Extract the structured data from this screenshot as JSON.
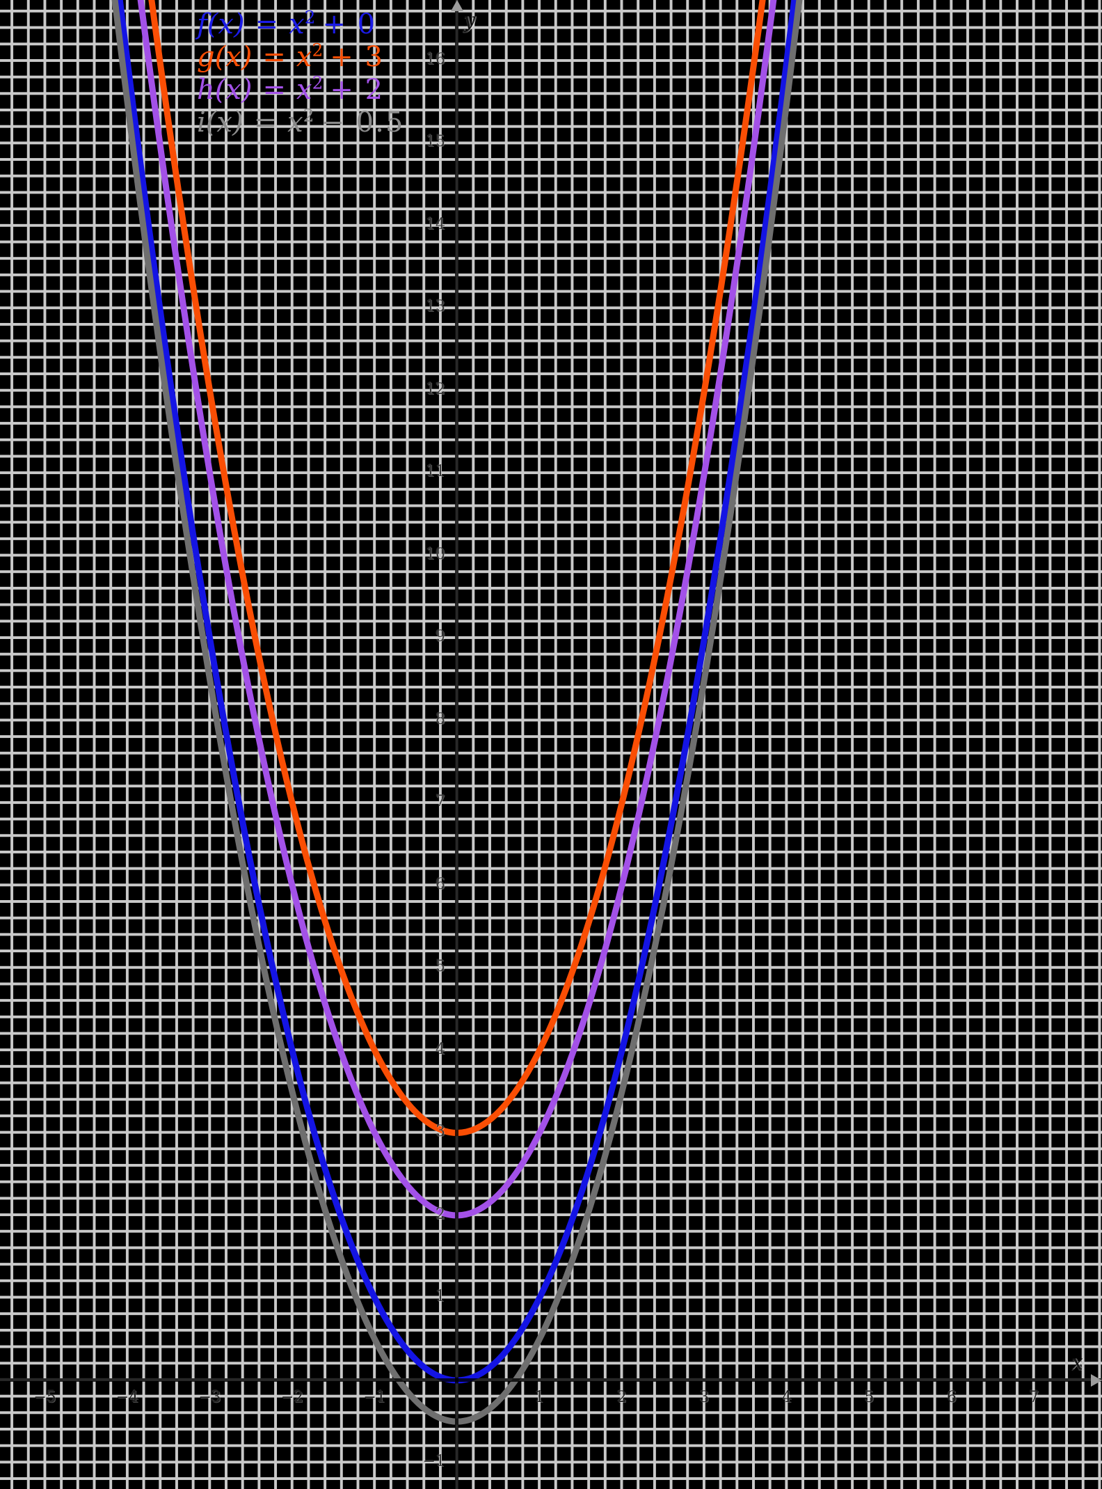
{
  "figure": {
    "background": "#000000",
    "grid_color": "#c9c9c9",
    "axis_color": "#000000",
    "arrow_color": "#9c9c9c"
  },
  "axes": {
    "x_label": "x",
    "y_label": "y"
  },
  "legend": {
    "items": [
      {
        "lhs": "f(x)",
        "eq": "=",
        "base": "x",
        "sup": "2",
        "tail": "+ 0",
        "color": "#1b1be6"
      },
      {
        "lhs": "g(x)",
        "eq": "=",
        "base": "x",
        "sup": "2",
        "tail": "+ 3",
        "color": "#fa4e04"
      },
      {
        "lhs": "h(x)",
        "eq": "=",
        "base": "x",
        "sup": "2",
        "tail": "+ 2",
        "color": "#a351e8"
      },
      {
        "lhs": "i(x)",
        "eq": "=",
        "base": "x",
        "sup": "2",
        "tail": "− 0.5",
        "color": "#8b8b8b"
      }
    ]
  },
  "chart_data": {
    "type": "line",
    "title": "",
    "xlabel": "x",
    "ylabel": "y",
    "xlim": [
      -5.545,
      7.823
    ],
    "ylim": [
      -1.317,
      16.734
    ],
    "grid": true,
    "grid_step": 0.2,
    "legend_position": "top-left",
    "x_ticks": [
      -5,
      -4,
      -3,
      -2,
      -1,
      1,
      2,
      3,
      4,
      5,
      6,
      7
    ],
    "y_ticks": [
      16,
      15,
      14,
      13,
      12,
      11,
      10,
      9,
      8,
      7,
      6,
      5,
      4,
      3,
      2,
      1,
      -1
    ],
    "series": [
      {
        "name": "f(x) = x^2 + 0",
        "formula": "y = x^2 + 0",
        "c": 0,
        "vertex": [
          0,
          0
        ],
        "color": "#1414e4"
      },
      {
        "name": "g(x) = x^2 + 3",
        "formula": "y = x^2 + 3",
        "c": 3,
        "vertex": [
          0,
          3
        ],
        "color": "#fa4e04"
      },
      {
        "name": "h(x) = x^2 + 2",
        "formula": "y = x^2 + 2",
        "c": 2,
        "vertex": [
          0,
          2
        ],
        "color": "#a351e8"
      },
      {
        "name": "i(x) = x^2 - 0.5",
        "formula": "y = x^2 - 0.5",
        "c": -0.5,
        "vertex": [
          0,
          -0.5
        ],
        "color": "#6f6f6f"
      }
    ]
  }
}
